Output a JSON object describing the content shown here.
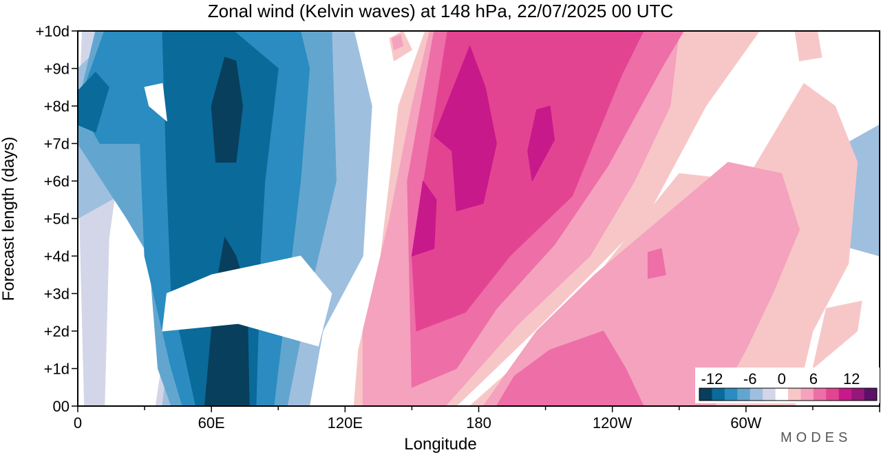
{
  "chart_data": {
    "type": "heatmap",
    "title": "Zonal wind (Kelvin waves) at 148 hPa,  22/07/2025  00 UTC",
    "xlabel": "Longitude",
    "ylabel": "Forecast length (days)",
    "x_ticks": [
      {
        "lon": 0,
        "label": "0"
      },
      {
        "lon": 60,
        "label": "60E"
      },
      {
        "lon": 120,
        "label": "120E"
      },
      {
        "lon": 180,
        "label": "180"
      },
      {
        "lon": 240,
        "label": "120W"
      },
      {
        "lon": 300,
        "label": "60W"
      }
    ],
    "y_ticks": [
      {
        "day": 0,
        "label": "00"
      },
      {
        "day": 1,
        "label": "+1d"
      },
      {
        "day": 2,
        "label": "+2d"
      },
      {
        "day": 3,
        "label": "+3d"
      },
      {
        "day": 4,
        "label": "+4d"
      },
      {
        "day": 5,
        "label": "+5d"
      },
      {
        "day": 6,
        "label": "+6d"
      },
      {
        "day": 7,
        "label": "+7d"
      },
      {
        "day": 8,
        "label": "+8d"
      },
      {
        "day": 9,
        "label": "+9d"
      },
      {
        "day": 10,
        "label": "+10d"
      }
    ],
    "xlim": [
      0,
      360
    ],
    "ylim": [
      0,
      10
    ],
    "colorbar": {
      "labels": [
        "-12",
        "-6",
        "0",
        "6",
        "12"
      ],
      "levels": [
        -14,
        -12,
        -10,
        -8,
        -6,
        -4,
        -2,
        2,
        4,
        6,
        8,
        10,
        12,
        14
      ],
      "colors": [
        "#083f5c",
        "#0a6a9a",
        "#2a8cc0",
        "#62a6cf",
        "#9fbfde",
        "#d3d6e8",
        "#ffffff",
        "#f7c7c8",
        "#f4a2be",
        "#ee6ea7",
        "#e34492",
        "#c8198b",
        "#951779",
        "#5c1068"
      ]
    },
    "bands": [
      {
        "anomaly": -2,
        "color": "#d3d6e8",
        "pts": [
          [
            3,
            0
          ],
          [
            12,
            0
          ],
          [
            14,
            4.5
          ],
          [
            20,
            7
          ],
          [
            14,
            9.5
          ],
          [
            12,
            10
          ],
          [
            2,
            10
          ],
          [
            0,
            7
          ]
        ]
      },
      {
        "anomaly": -2,
        "color": "#d3d6e8",
        "pts": [
          [
            35,
            0
          ],
          [
            48,
            0
          ],
          [
            72,
            6
          ],
          [
            86,
            10
          ],
          [
            60,
            10
          ],
          [
            52,
            6
          ],
          [
            40,
            2
          ]
        ]
      },
      {
        "anomaly": -4,
        "color": "#9fbfde",
        "pts": [
          [
            38,
            0
          ],
          [
            104,
            0
          ],
          [
            110,
            2
          ],
          [
            128,
            4
          ],
          [
            132,
            8
          ],
          [
            124,
            10
          ],
          [
            18,
            10
          ],
          [
            0,
            9
          ],
          [
            0,
            5
          ],
          [
            30,
            6
          ],
          [
            40,
            3.5
          ],
          [
            40,
            1
          ]
        ]
      },
      {
        "anomaly": -4,
        "color": "#9fbfde",
        "pts": [
          [
            330,
            4.5
          ],
          [
            360,
            4
          ],
          [
            360,
            7.5
          ],
          [
            345,
            7
          ]
        ]
      },
      {
        "anomaly": -6,
        "color": "#62a6cf",
        "pts": [
          [
            42,
            0
          ],
          [
            94,
            0
          ],
          [
            104,
            3
          ],
          [
            116,
            6
          ],
          [
            114,
            10
          ],
          [
            8,
            10
          ],
          [
            0,
            8
          ],
          [
            0,
            7
          ],
          [
            22,
            5
          ],
          [
            32,
            4
          ],
          [
            36,
            1
          ]
        ]
      },
      {
        "anomaly": -8,
        "color": "#2a8cc0",
        "pts": [
          [
            47,
            0
          ],
          [
            88,
            0
          ],
          [
            94,
            3
          ],
          [
            100,
            6
          ],
          [
            104,
            9
          ],
          [
            100,
            10
          ],
          [
            12,
            10
          ],
          [
            0,
            8
          ],
          [
            10,
            7
          ],
          [
            28,
            7
          ],
          [
            30,
            4
          ],
          [
            42,
            1
          ]
        ]
      },
      {
        "anomaly": -10,
        "color": "#0a6a9a",
        "pts": [
          [
            53,
            0
          ],
          [
            80,
            0
          ],
          [
            82,
            4
          ],
          [
            84,
            6
          ],
          [
            90,
            9
          ],
          [
            70,
            10
          ],
          [
            38,
            10
          ],
          [
            40,
            6
          ],
          [
            42,
            3
          ]
        ]
      },
      {
        "anomaly": -12,
        "color": "#083f5c",
        "pts": [
          [
            57,
            0
          ],
          [
            77,
            0
          ],
          [
            76,
            3
          ],
          [
            71,
            4
          ],
          [
            66,
            4.5
          ],
          [
            63,
            3.5
          ],
          [
            60,
            2
          ]
        ]
      },
      {
        "anomaly": -12,
        "color": "#083f5c",
        "pts": [
          [
            62,
            6.5
          ],
          [
            71,
            6.5
          ],
          [
            74,
            8
          ],
          [
            71,
            9.2
          ],
          [
            66,
            9.3
          ],
          [
            60,
            8
          ]
        ]
      },
      {
        "anomaly": -10,
        "color": "#0a6a9a",
        "pts": [
          [
            0,
            7.5
          ],
          [
            8,
            7.3
          ],
          [
            14,
            8.5
          ],
          [
            8,
            8.9
          ],
          [
            0,
            8.4
          ]
        ]
      },
      {
        "anomaly": 2,
        "color": "#f7c7c8",
        "pts": [
          [
            124,
            0
          ],
          [
            170,
            0
          ],
          [
            205,
            2
          ],
          [
            255,
            5
          ],
          [
            282,
            8
          ],
          [
            306,
            10
          ],
          [
            156,
            10
          ],
          [
            144,
            8
          ],
          [
            136,
            4
          ],
          [
            126,
            1.5
          ]
        ]
      },
      {
        "anomaly": 2,
        "color": "#f7c7c8",
        "pts": [
          [
            176,
            0
          ],
          [
            322,
            0
          ],
          [
            330,
            2
          ],
          [
            346,
            3.8
          ],
          [
            350,
            6.5
          ],
          [
            340,
            8
          ],
          [
            326,
            8.6
          ],
          [
            300,
            6
          ],
          [
            270,
            6.2
          ],
          [
            240,
            4
          ],
          [
            214,
            2
          ]
        ]
      },
      {
        "anomaly": 4,
        "color": "#f4a2be",
        "pts": [
          [
            128,
            0
          ],
          [
            165,
            0
          ],
          [
            198,
            2.2
          ],
          [
            230,
            4
          ],
          [
            250,
            6
          ],
          [
            266,
            8
          ],
          [
            270,
            10
          ],
          [
            158,
            10
          ],
          [
            150,
            8
          ],
          [
            140,
            5
          ],
          [
            128,
            2
          ]
        ]
      },
      {
        "anomaly": 4,
        "color": "#f4a2be",
        "pts": [
          [
            182,
            0
          ],
          [
            286,
            0
          ],
          [
            300,
            1.5
          ],
          [
            312,
            3
          ],
          [
            324,
            4.7
          ],
          [
            316,
            6.2
          ],
          [
            292,
            6.5
          ],
          [
            262,
            5
          ],
          [
            232,
            3.5
          ],
          [
            206,
            2
          ]
        ]
      },
      {
        "anomaly": 6,
        "color": "#ee6ea7",
        "pts": [
          [
            150,
            0.5
          ],
          [
            170,
            1
          ],
          [
            188,
            2.6
          ],
          [
            214,
            4.3
          ],
          [
            238,
            6.4
          ],
          [
            262,
            9
          ],
          [
            272,
            10
          ],
          [
            160,
            10
          ],
          [
            148,
            6
          ]
        ]
      },
      {
        "anomaly": 6,
        "color": "#ee6ea7",
        "pts": [
          [
            188,
            0
          ],
          [
            254,
            0
          ],
          [
            246,
            1
          ],
          [
            236,
            2
          ],
          [
            212,
            1.5
          ],
          [
            196,
            0.8
          ]
        ]
      },
      {
        "anomaly": 8,
        "color": "#e34492",
        "pts": [
          [
            152,
            2
          ],
          [
            174,
            2.5
          ],
          [
            194,
            4
          ],
          [
            222,
            5.6
          ],
          [
            244,
            8.8
          ],
          [
            254,
            10
          ],
          [
            166,
            10
          ],
          [
            158,
            7
          ],
          [
            150,
            4
          ]
        ]
      },
      {
        "anomaly": 10,
        "color": "#c8198b",
        "pts": [
          [
            150,
            4
          ],
          [
            160,
            4.2
          ],
          [
            161,
            5.5
          ],
          [
            155,
            6
          ]
        ]
      },
      {
        "anomaly": 10,
        "color": "#c8198b",
        "pts": [
          [
            170,
            5.2
          ],
          [
            182,
            5.4
          ],
          [
            188,
            7
          ],
          [
            183,
            8.5
          ],
          [
            176,
            9.6
          ],
          [
            160,
            7.2
          ],
          [
            168,
            6.8
          ]
        ]
      },
      {
        "anomaly": 10,
        "color": "#c8198b",
        "pts": [
          [
            204,
            6
          ],
          [
            214,
            7.1
          ],
          [
            212,
            8
          ],
          [
            206,
            7.9
          ],
          [
            202,
            6.8
          ]
        ]
      },
      {
        "anomaly": 2,
        "color": "#f7c7c8",
        "pts": [
          [
            142,
            9.2
          ],
          [
            150,
            9.5
          ],
          [
            146,
            10
          ],
          [
            140,
            9.8
          ]
        ]
      },
      {
        "anomaly": 4,
        "color": "#f4a2be",
        "pts": [
          [
            142,
            9.5
          ],
          [
            146,
            9.6
          ],
          [
            145,
            9.9
          ],
          [
            141,
            9.8
          ]
        ]
      },
      {
        "anomaly": 6,
        "color": "#ee6ea7",
        "pts": [
          [
            256,
            3.4
          ],
          [
            264,
            3.5
          ],
          [
            262,
            4.2
          ],
          [
            256,
            4.1
          ]
        ]
      },
      {
        "anomaly": 2,
        "color": "#f7c7c8",
        "pts": [
          [
            330,
            1
          ],
          [
            350,
            2
          ],
          [
            352,
            2.8
          ],
          [
            336,
            2.6
          ]
        ]
      },
      {
        "anomaly": 2,
        "color": "#f7c7c8",
        "pts": [
          [
            324,
            9.2
          ],
          [
            334,
            9.3
          ],
          [
            332,
            10
          ],
          [
            322,
            10
          ]
        ]
      },
      {
        "anomaly": 0,
        "color": "#ffffff",
        "pts": [
          [
            32,
            8
          ],
          [
            40,
            7.6
          ],
          [
            38,
            8.6
          ],
          [
            30,
            8.5
          ]
        ]
      },
      {
        "anomaly": 0,
        "color": "#ffffff",
        "pts": [
          [
            38,
            2
          ],
          [
            72,
            2.2
          ],
          [
            108,
            1.6
          ],
          [
            114,
            3
          ],
          [
            100,
            4
          ],
          [
            60,
            3.5
          ],
          [
            40,
            3
          ]
        ]
      }
    ]
  },
  "brand": "MODES"
}
